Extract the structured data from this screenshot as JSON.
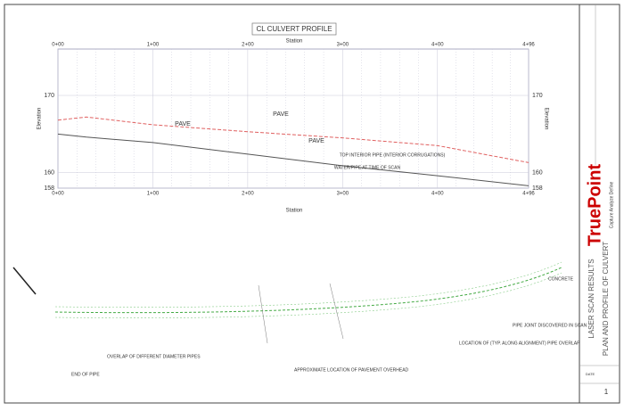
{
  "chart_data": {
    "type": "line",
    "title": "CL CULVERT PROFILE",
    "xlabel": "Station",
    "ylabel": "Elevation",
    "x": [
      0,
      30,
      100,
      200,
      300,
      400,
      496
    ],
    "series": [
      {
        "color": "#e06060",
        "dash": true,
        "values": [
          166.8,
          167.2,
          166.2,
          165.3,
          164.5,
          163.5,
          161.3
        ]
      },
      {
        "color": "#555555",
        "dash": false,
        "values": [
          165.0,
          164.6,
          163.9,
          162.4,
          160.9,
          159.6,
          158.3
        ]
      }
    ],
    "xlim": [
      0,
      496
    ],
    "xticks": [
      {
        "value": 0,
        "label": "0+00"
      },
      {
        "value": 100,
        "label": "1+00"
      },
      {
        "value": 200,
        "label": "2+00"
      },
      {
        "value": 300,
        "label": "3+00"
      },
      {
        "value": 400,
        "label": "4+00"
      },
      {
        "value": 496,
        "label": "4+96"
      }
    ],
    "ylim": [
      158,
      176
    ],
    "yticks": [
      158,
      160,
      170
    ],
    "grid": true,
    "annotations": [
      "PAVE",
      "PAVE",
      "PAVE",
      "TOP INTERIOR PIPE (INTERIOR CORRUGATIONS)",
      "WATER/PIPE AT TIME OF SCAN"
    ]
  },
  "plan": {
    "callouts": [
      "END OF PIPE",
      "OVERLAP OF DIFFERENT DIAMETER PIPES",
      "APPROXIMATE LOCATION OF PAVEMENT OVERHEAD",
      "LOCATION OF (TYP. ALONG ALIGNMENT) PIPE OVERLAP",
      "PIPE JOINT DISCOVERED IN SCAN",
      "CONCRETE"
    ]
  },
  "title_block": {
    "logo": "TruePoint",
    "tagline": "Capture Analyze Define",
    "title": "LASER SCAN RESULTS",
    "subtitle": "PLAN AND PROFILE OF CULVERT",
    "sheet": "1"
  }
}
